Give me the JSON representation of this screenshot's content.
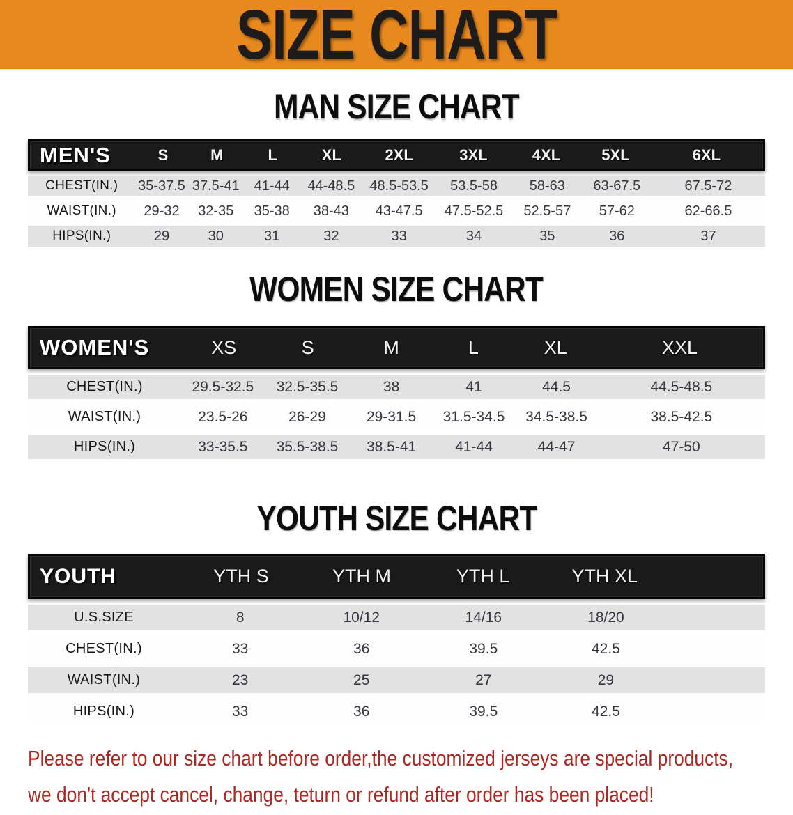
{
  "banner": {
    "title": "SIZE CHART"
  },
  "colors": {
    "banner_bg": "#E8891E",
    "header_bar": "#1A1A1A",
    "row_alt_gray": "#E2E2E2",
    "note_red": "#B02721"
  },
  "sections": [
    {
      "heading": "MAN SIZE CHART",
      "table": {
        "corner": "MEN'S",
        "columns": [
          "S",
          "M",
          "L",
          "XL",
          "2XL",
          "3XL",
          "4XL",
          "5XL",
          "6XL"
        ],
        "rows": [
          {
            "label": "CHEST(IN.)",
            "values": [
              "35-37.5",
              "37.5-41",
              "41-44",
              "44-48.5",
              "48.5-53.5",
              "53.5-58",
              "58-63",
              "63-67.5",
              "67.5-72"
            ]
          },
          {
            "label": "WAIST(IN.)",
            "values": [
              "29-32",
              "32-35",
              "35-38",
              "38-43",
              "43-47.5",
              "47.5-52.5",
              "52.5-57",
              "57-62",
              "62-66.5"
            ]
          },
          {
            "label": "HIPS(IN.)",
            "values": [
              "29",
              "30",
              "31",
              "32",
              "33",
              "34",
              "35",
              "36",
              "37"
            ]
          }
        ]
      }
    },
    {
      "heading": "WOMEN SIZE CHART",
      "table": {
        "corner": "WOMEN'S",
        "columns": [
          "XS",
          "S",
          "M",
          "L",
          "XL",
          "XXL"
        ],
        "rows": [
          {
            "label": "CHEST(IN.)",
            "values": [
              "29.5-32.5",
              "32.5-35.5",
              "38",
              "41",
              "44.5",
              "44.5-48.5"
            ]
          },
          {
            "label": "WAIST(IN.)",
            "values": [
              "23.5-26",
              "26-29",
              "29-31.5",
              "31.5-34.5",
              "34.5-38.5",
              "38.5-42.5"
            ]
          },
          {
            "label": "HIPS(IN.)",
            "values": [
              "33-35.5",
              "35.5-38.5",
              "38.5-41",
              "41-44",
              "44-47",
              "47-50"
            ]
          }
        ]
      }
    },
    {
      "heading": "YOUTH SIZE CHART",
      "table": {
        "corner": "YOUTH",
        "columns": [
          "YTH S",
          "YTH M",
          "YTH L",
          "YTH XL"
        ],
        "rows": [
          {
            "label": "U.S.SIZE",
            "values": [
              "8",
              "10/12",
              "14/16",
              "18/20"
            ]
          },
          {
            "label": "CHEST(IN.)",
            "values": [
              "33",
              "36",
              "39.5",
              "42.5"
            ]
          },
          {
            "label": "WAIST(IN.)",
            "values": [
              "23",
              "25",
              "27",
              "29"
            ]
          },
          {
            "label": "HIPS(IN.)",
            "values": [
              "33",
              "36",
              "39.5",
              "42.5"
            ]
          }
        ]
      }
    }
  ],
  "footer": {
    "lines": [
      "Please refer to our size chart before order,the customized jerseys are special products,",
      "we don't accept cancel, change, teturn or refund after order has been placed!"
    ]
  }
}
